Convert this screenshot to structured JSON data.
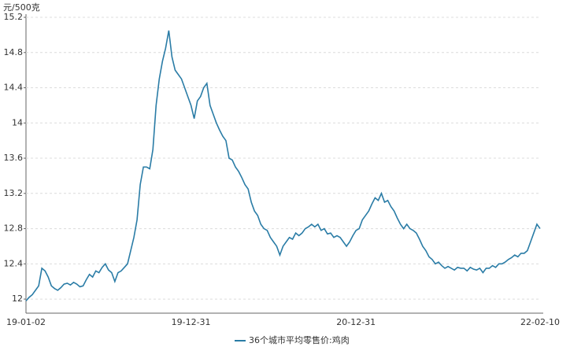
{
  "chart_data": {
    "type": "line",
    "y_label": "元/500克",
    "categories": [
      "19-01-02",
      null,
      null,
      null,
      null,
      null,
      null,
      null,
      null,
      null,
      null,
      null,
      null,
      null,
      null,
      null,
      null,
      null,
      null,
      null,
      null,
      null,
      null,
      null,
      null,
      null,
      null,
      null,
      null,
      null,
      null,
      null,
      null,
      null,
      null,
      null,
      null,
      null,
      null,
      null,
      null,
      null,
      null,
      null,
      null,
      null,
      null,
      null,
      null,
      null,
      null,
      null,
      "19-12-31",
      null,
      null,
      null,
      null,
      null,
      null,
      null,
      null,
      null,
      null,
      null,
      null,
      null,
      null,
      null,
      null,
      null,
      null,
      null,
      null,
      null,
      null,
      null,
      null,
      null,
      null,
      null,
      null,
      null,
      null,
      null,
      null,
      null,
      null,
      null,
      null,
      null,
      null,
      null,
      null,
      null,
      null,
      null,
      null,
      null,
      null,
      null,
      null,
      null,
      null,
      null,
      "20-12-31",
      null,
      null,
      null,
      null,
      null,
      null,
      null,
      null,
      null,
      null,
      null,
      null,
      null,
      null,
      null,
      null,
      null,
      null,
      null,
      null,
      null,
      null,
      null,
      null,
      null,
      null,
      null,
      null,
      null,
      null,
      null,
      null,
      null,
      null,
      null,
      null,
      null,
      null,
      null,
      null,
      null,
      null,
      null,
      null,
      null,
      null,
      null,
      null,
      null,
      null,
      null,
      null,
      null,
      null,
      null,
      null,
      null,
      "22-02-10"
    ],
    "series": [
      {
        "name": "36个城市平均零售价:鸡肉",
        "color": "#2a7ca6",
        "values": [
          11.98,
          12.02,
          12.05,
          12.1,
          12.15,
          12.35,
          12.32,
          12.25,
          12.15,
          12.12,
          12.1,
          12.13,
          12.17,
          12.18,
          12.16,
          12.19,
          12.17,
          12.14,
          12.15,
          12.22,
          12.28,
          12.25,
          12.32,
          12.3,
          12.36,
          12.4,
          12.33,
          12.3,
          12.2,
          12.3,
          12.32,
          12.36,
          12.4,
          12.55,
          12.7,
          12.9,
          13.3,
          13.5,
          13.5,
          13.48,
          13.7,
          14.2,
          14.5,
          14.7,
          14.85,
          15.05,
          14.75,
          14.6,
          14.55,
          14.5,
          14.4,
          14.3,
          14.2,
          14.05,
          14.25,
          14.3,
          14.4,
          14.45,
          14.2,
          14.1,
          14.0,
          13.92,
          13.85,
          13.8,
          13.6,
          13.58,
          13.5,
          13.45,
          13.38,
          13.3,
          13.25,
          13.1,
          13.0,
          12.95,
          12.85,
          12.8,
          12.78,
          12.7,
          12.65,
          12.6,
          12.5,
          12.6,
          12.65,
          12.7,
          12.68,
          12.75,
          12.72,
          12.75,
          12.8,
          12.82,
          12.85,
          12.82,
          12.85,
          12.78,
          12.8,
          12.74,
          12.75,
          12.7,
          12.72,
          12.7,
          12.65,
          12.6,
          12.65,
          12.72,
          12.78,
          12.8,
          12.9,
          12.95,
          13.0,
          13.08,
          13.15,
          13.12,
          13.2,
          13.1,
          13.12,
          13.05,
          13.0,
          12.92,
          12.85,
          12.8,
          12.85,
          12.8,
          12.78,
          12.75,
          12.68,
          12.6,
          12.55,
          12.48,
          12.45,
          12.4,
          12.42,
          12.38,
          12.35,
          12.37,
          12.35,
          12.33,
          12.36,
          12.35,
          12.35,
          12.32,
          12.36,
          12.34,
          12.33,
          12.35,
          12.3,
          12.35,
          12.35,
          12.38,
          12.36,
          12.4,
          12.4,
          12.42,
          12.45,
          12.47,
          12.5,
          12.48,
          12.52,
          12.52,
          12.55,
          12.65,
          12.75,
          12.85,
          12.8
        ]
      }
    ],
    "ylim": [
      11.84,
      15.2
    ],
    "yticks": [
      12,
      12.4,
      12.8,
      13.2,
      13.6,
      14,
      14.4,
      14.8,
      15.2
    ],
    "grid": true
  }
}
